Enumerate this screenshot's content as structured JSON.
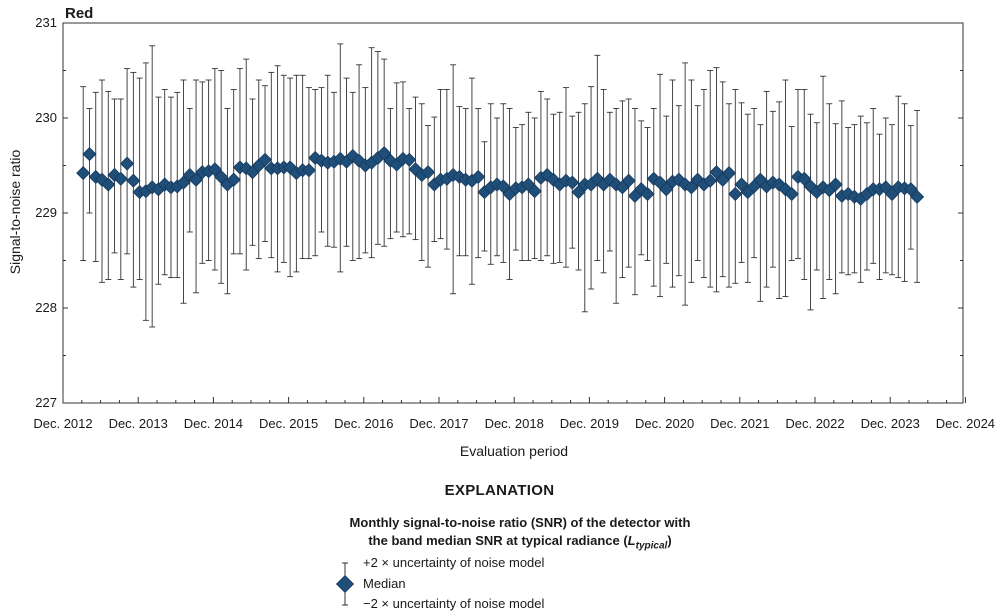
{
  "chart_data": {
    "type": "scatter",
    "panel_label": "Red",
    "xlabel": "Evaluation period",
    "ylabel": "Signal-to-noise ratio",
    "ylim": [
      227,
      231
    ],
    "y_ticks": [
      227,
      228,
      229,
      230,
      231
    ],
    "x_tick_labels": [
      "Dec. 2012",
      "Dec. 2013",
      "Dec. 2014",
      "Dec. 2015",
      "Dec. 2016",
      "Dec. 2017",
      "Dec. 2018",
      "Dec. 2019",
      "Dec. 2020",
      "Dec. 2021",
      "Dec. 2022",
      "Dec. 2023",
      "Dec. 2024"
    ],
    "grid": false,
    "marker_color": "#1f4e79",
    "error_bar_color": "#333333",
    "series": [
      {
        "values": [
          229.42,
          229.62,
          229.38,
          229.35,
          229.3,
          229.4,
          229.36,
          229.52,
          229.34,
          229.22,
          229.23,
          229.27,
          229.25,
          229.3,
          229.27,
          229.28,
          229.32,
          229.4,
          229.35,
          229.43,
          229.44,
          229.46,
          229.38,
          229.3,
          229.35,
          229.48,
          229.47,
          229.43,
          229.5,
          229.56,
          229.47,
          229.47,
          229.48,
          229.48,
          229.42,
          229.45,
          229.45,
          229.58,
          229.55,
          229.53,
          229.54,
          229.57,
          229.54,
          229.6,
          229.55,
          229.5,
          229.53,
          229.58,
          229.63,
          229.55,
          229.51,
          229.57,
          229.56,
          229.46,
          229.4,
          229.43,
          229.3,
          229.35,
          229.36,
          229.4,
          229.38,
          229.35,
          229.34,
          229.38,
          229.22,
          229.27,
          229.3,
          229.28,
          229.2,
          229.26,
          229.27,
          229.3,
          229.23,
          229.37,
          229.4,
          229.35,
          229.3,
          229.34,
          229.32,
          229.22,
          229.3,
          229.3,
          229.36,
          229.3,
          229.35,
          229.3,
          229.27,
          229.34,
          229.18,
          229.25,
          229.2,
          229.36,
          229.32,
          229.25,
          229.33,
          229.35,
          229.3,
          229.27,
          229.35,
          229.3,
          229.34,
          229.43,
          229.35,
          229.42,
          229.2,
          229.3,
          229.22,
          229.28,
          229.35,
          229.28,
          229.32,
          229.3,
          229.25,
          229.2,
          229.38,
          229.36,
          229.28,
          229.22,
          229.27,
          229.24,
          229.3,
          229.18,
          229.2,
          229.17,
          229.15,
          229.2,
          229.25,
          229.25,
          229.27,
          229.2,
          229.27,
          229.26,
          229.25,
          229.17
        ],
        "upper_2sigma": [
          230.33,
          230.1,
          230.27,
          230.4,
          230.28,
          230.2,
          230.2,
          230.52,
          230.48,
          230.42,
          230.58,
          230.76,
          230.22,
          230.3,
          230.22,
          230.27,
          230.4,
          230.1,
          230.4,
          230.38,
          230.4,
          230.52,
          230.5,
          230.1,
          230.3,
          230.52,
          230.62,
          230.2,
          230.4,
          230.34,
          230.48,
          230.55,
          230.45,
          230.42,
          230.45,
          230.45,
          230.32,
          230.3,
          230.32,
          230.45,
          230.27,
          230.78,
          230.42,
          230.27,
          230.56,
          230.32,
          230.74,
          230.7,
          230.62,
          230.1,
          230.37,
          230.38,
          230.1,
          230.22,
          230.15,
          229.92,
          230.01,
          230.3,
          230.3,
          230.56,
          230.12,
          230.1,
          230.42,
          230.1,
          229.75,
          230.15,
          230.0,
          230.15,
          230.1,
          229.9,
          229.93,
          230.06,
          230.0,
          230.28,
          230.2,
          230.04,
          230.06,
          230.32,
          230.02,
          230.06,
          230.15,
          230.33,
          230.66,
          230.3,
          230.06,
          230.1,
          230.18,
          230.2,
          230.1,
          229.97,
          229.9,
          230.1,
          230.46,
          230.02,
          230.4,
          230.13,
          230.58,
          230.4,
          230.13,
          230.3,
          230.5,
          230.53,
          230.38,
          230.15,
          230.3,
          230.16,
          230.04,
          230.1,
          229.93,
          230.28,
          230.07,
          230.17,
          230.4,
          229.91,
          230.3,
          230.3,
          230.04,
          229.95,
          230.44,
          230.15,
          229.94,
          230.18,
          229.9,
          229.93,
          230.02,
          229.95,
          230.1,
          229.83,
          230.0,
          229.93,
          230.23,
          230.15,
          229.92,
          230.08
        ],
        "lower_2sigma": [
          228.5,
          229.0,
          228.49,
          228.27,
          228.3,
          228.58,
          228.3,
          228.57,
          228.22,
          228.3,
          227.87,
          227.8,
          228.25,
          228.35,
          228.32,
          228.32,
          228.05,
          228.8,
          228.16,
          228.47,
          228.5,
          228.4,
          228.26,
          228.15,
          228.57,
          228.57,
          228.4,
          228.66,
          228.52,
          228.7,
          228.53,
          228.38,
          228.48,
          228.33,
          228.38,
          228.52,
          228.52,
          228.55,
          228.8,
          228.65,
          228.64,
          228.38,
          228.65,
          228.5,
          228.52,
          228.58,
          228.53,
          228.67,
          228.65,
          228.73,
          228.8,
          228.75,
          228.78,
          228.72,
          228.5,
          228.43,
          228.7,
          228.73,
          228.62,
          228.15,
          228.55,
          228.55,
          228.25,
          228.53,
          228.6,
          228.46,
          228.55,
          228.48,
          228.3,
          228.61,
          228.5,
          228.5,
          228.52,
          228.5,
          228.55,
          228.47,
          228.48,
          228.43,
          228.63,
          228.4,
          227.96,
          228.2,
          228.5,
          228.37,
          228.6,
          228.05,
          228.32,
          228.43,
          228.14,
          228.56,
          228.5,
          228.23,
          228.12,
          228.47,
          228.22,
          228.34,
          228.03,
          228.27,
          228.5,
          228.32,
          228.22,
          228.17,
          228.33,
          228.22,
          228.26,
          228.48,
          228.27,
          228.53,
          228.07,
          228.22,
          228.43,
          228.1,
          228.12,
          228.5,
          228.52,
          228.3,
          227.98,
          228.4,
          228.1,
          228.3,
          228.15,
          228.37,
          228.35,
          228.37,
          228.27,
          228.4,
          228.47,
          228.3,
          228.37,
          228.35,
          228.32,
          228.28,
          228.62,
          228.27
        ]
      }
    ]
  },
  "legend": {
    "heading": "EXPLANATION",
    "caption_line1": "Monthly signal-to-noise ratio (SNR) of the detector with",
    "caption_line2": "the band median SNR at typical radiance (",
    "caption_symbol": "L",
    "caption_subscript": "typical",
    "caption_close": ")",
    "upper_label": "+2 × uncertainty of noise model",
    "median_label": "Median",
    "lower_label": "−2 × uncertainty of noise model"
  }
}
